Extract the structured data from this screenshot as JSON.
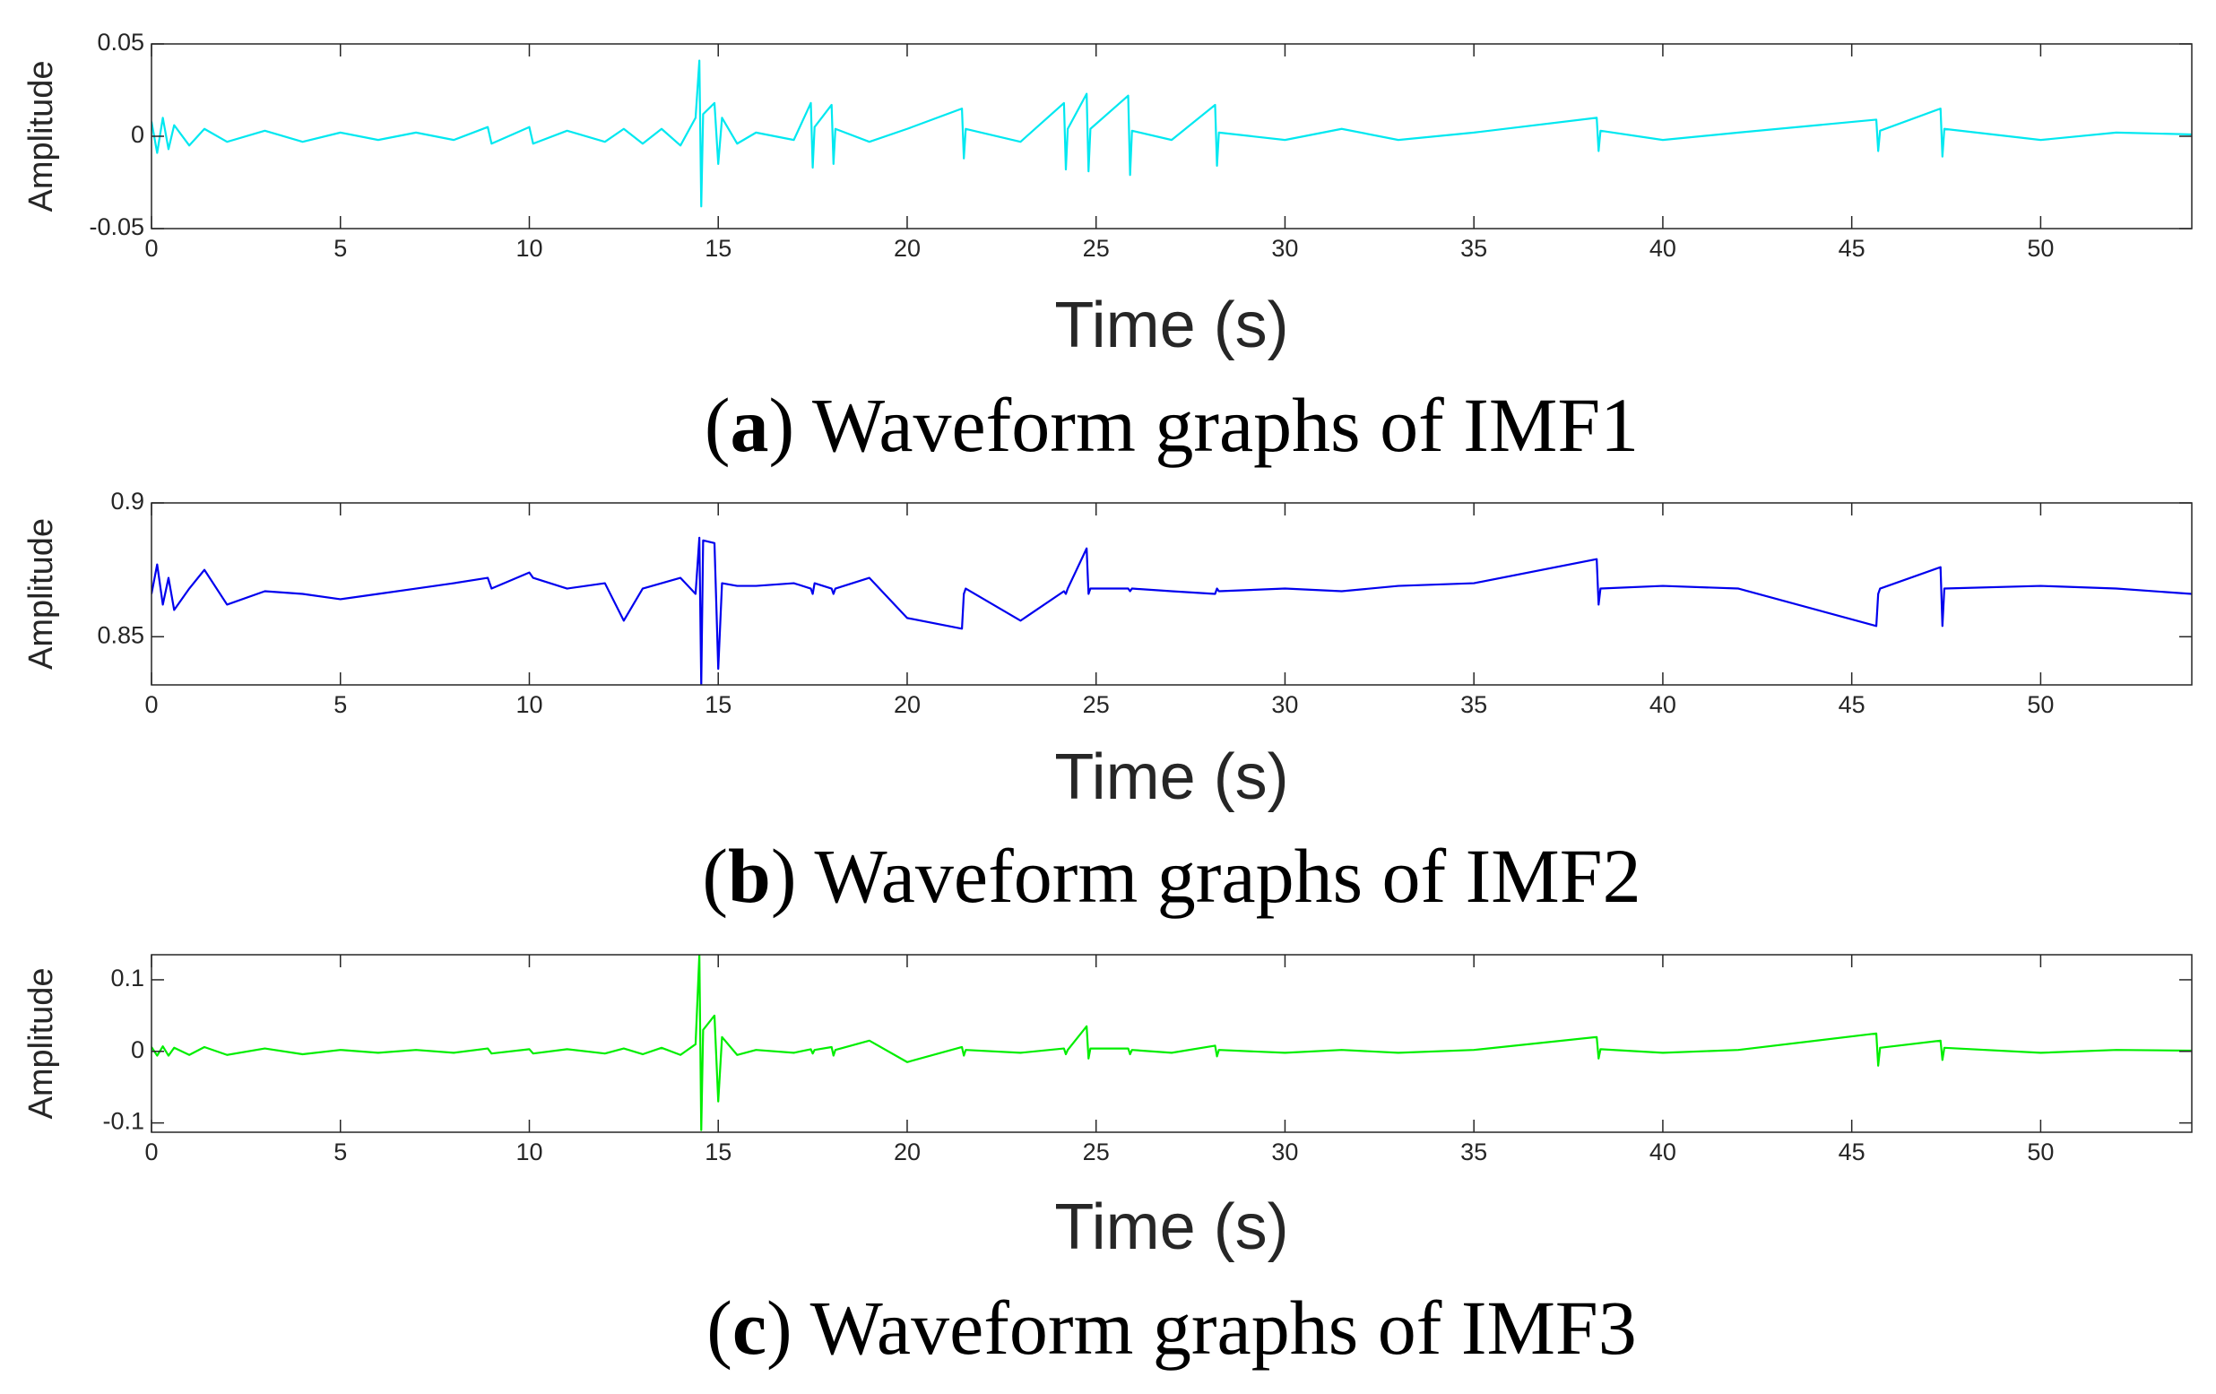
{
  "chart_data": [
    {
      "type": "line",
      "ylabel": "Amplitude",
      "xlabel": "Time (s)",
      "caption": [
        "(",
        "a",
        ") Waveform graphs of IMF1"
      ],
      "xlim": [
        0,
        54
      ],
      "xticks": [
        0,
        5,
        10,
        15,
        20,
        25,
        30,
        35,
        40,
        45,
        50
      ],
      "ylim": [
        -0.05,
        0.05
      ],
      "yticks": [
        -0.05,
        0,
        0.05
      ],
      "x": [
        0,
        0.15,
        0.3,
        0.45,
        0.6,
        1,
        1.4,
        2,
        3,
        4,
        5,
        6,
        7,
        8,
        8.9,
        9,
        10,
        10.1,
        11,
        12,
        12.5,
        13,
        13.5,
        14,
        14.4,
        14.5,
        14.55,
        14.6,
        14.9,
        15,
        15.1,
        15.5,
        16,
        17,
        17.45,
        17.5,
        17.55,
        18,
        18.05,
        18.1,
        19,
        20,
        21.45,
        21.5,
        21.55,
        23,
        24.15,
        24.2,
        24.25,
        24.75,
        24.8,
        24.85,
        25.85,
        25.9,
        25.95,
        27,
        28.15,
        28.2,
        28.25,
        30,
        31.5,
        33,
        35,
        38.25,
        38.3,
        38.35,
        40,
        42,
        45.65,
        45.7,
        45.75,
        47.35,
        47.4,
        47.45,
        50,
        52,
        54
      ],
      "series": [
        {
          "color": "#00e8f0",
          "values": [
            0.008,
            -0.009,
            0.01,
            -0.007,
            0.006,
            -0.005,
            0.004,
            -0.003,
            0.003,
            -0.003,
            0.002,
            -0.002,
            0.002,
            -0.002,
            0.005,
            -0.004,
            0.005,
            -0.004,
            0.003,
            -0.003,
            0.004,
            -0.004,
            0.004,
            -0.005,
            0.01,
            0.041,
            -0.038,
            0.012,
            0.018,
            -0.015,
            0.01,
            -0.004,
            0.002,
            -0.002,
            0.018,
            -0.017,
            0.005,
            0.017,
            -0.015,
            0.004,
            -0.003,
            0.004,
            0.015,
            -0.012,
            0.004,
            -0.003,
            0.018,
            -0.018,
            0.004,
            0.023,
            -0.019,
            0.004,
            0.022,
            -0.021,
            0.003,
            -0.002,
            0.017,
            -0.016,
            0.002,
            -0.002,
            0.004,
            -0.002,
            0.002,
            0.01,
            -0.008,
            0.003,
            -0.002,
            0.002,
            0.009,
            -0.008,
            0.003,
            0.015,
            -0.011,
            0.004,
            -0.002,
            0.002,
            0.001
          ]
        }
      ]
    },
    {
      "type": "line",
      "ylabel": "Amplitude",
      "xlabel": "Time (s)",
      "caption": [
        "(",
        "b",
        ") Waveform graphs of IMF2"
      ],
      "xlim": [
        0,
        54
      ],
      "xticks": [
        0,
        5,
        10,
        15,
        20,
        25,
        30,
        35,
        40,
        45,
        50
      ],
      "ylim": [
        0.832,
        0.9
      ],
      "yticks": [
        0.85,
        0.9
      ],
      "x": [
        0,
        0.15,
        0.3,
        0.45,
        0.6,
        1,
        1.4,
        2,
        3,
        4,
        5,
        6,
        7,
        8,
        8.9,
        9,
        10,
        10.1,
        11,
        12,
        12.5,
        13,
        13.5,
        14,
        14.4,
        14.5,
        14.55,
        14.6,
        14.9,
        15,
        15.1,
        15.5,
        16,
        17,
        17.45,
        17.5,
        17.55,
        18,
        18.05,
        18.1,
        19,
        20,
        21.45,
        21.5,
        21.55,
        23,
        24.15,
        24.2,
        24.25,
        24.75,
        24.8,
        24.85,
        25.85,
        25.9,
        25.95,
        27,
        28.15,
        28.2,
        28.25,
        30,
        31.5,
        33,
        35,
        38.25,
        38.3,
        38.35,
        40,
        42,
        45.65,
        45.7,
        45.75,
        47.35,
        47.4,
        47.45,
        50,
        52,
        54
      ],
      "series": [
        {
          "color": "#0000ee",
          "values": [
            0.866,
            0.877,
            0.862,
            0.872,
            0.86,
            0.868,
            0.875,
            0.862,
            0.867,
            0.866,
            0.864,
            0.866,
            0.868,
            0.87,
            0.872,
            0.868,
            0.874,
            0.872,
            0.868,
            0.87,
            0.856,
            0.868,
            0.87,
            0.872,
            0.866,
            0.887,
            0.832,
            0.886,
            0.885,
            0.838,
            0.87,
            0.869,
            0.869,
            0.87,
            0.868,
            0.866,
            0.87,
            0.868,
            0.866,
            0.868,
            0.872,
            0.857,
            0.853,
            0.866,
            0.868,
            0.856,
            0.867,
            0.866,
            0.868,
            0.883,
            0.866,
            0.868,
            0.868,
            0.867,
            0.868,
            0.867,
            0.866,
            0.868,
            0.867,
            0.868,
            0.867,
            0.869,
            0.87,
            0.879,
            0.862,
            0.868,
            0.869,
            0.868,
            0.854,
            0.866,
            0.868,
            0.876,
            0.854,
            0.868,
            0.869,
            0.868,
            0.866
          ]
        }
      ]
    },
    {
      "type": "line",
      "ylabel": "Amplitude",
      "xlabel": "Time (s)",
      "caption": [
        "(",
        "c",
        ") Waveform graphs of IMF3"
      ],
      "xlim": [
        0,
        54
      ],
      "xticks": [
        0,
        5,
        10,
        15,
        20,
        25,
        30,
        35,
        40,
        45,
        50
      ],
      "ylim": [
        -0.113,
        0.135
      ],
      "yticks": [
        -0.1,
        0,
        0.1
      ],
      "x": [
        0,
        0.15,
        0.3,
        0.45,
        0.6,
        1,
        1.4,
        2,
        3,
        4,
        5,
        6,
        7,
        8,
        8.9,
        9,
        10,
        10.1,
        11,
        12,
        12.5,
        13,
        13.5,
        14,
        14.4,
        14.5,
        14.55,
        14.6,
        14.9,
        15,
        15.1,
        15.5,
        16,
        17,
        17.45,
        17.5,
        17.55,
        18,
        18.05,
        18.1,
        19,
        20,
        21.45,
        21.5,
        21.55,
        23,
        24.15,
        24.2,
        24.25,
        24.75,
        24.8,
        24.85,
        25.85,
        25.9,
        25.95,
        27,
        28.15,
        28.2,
        28.25,
        30,
        31.5,
        33,
        35,
        38.25,
        38.3,
        38.35,
        40,
        42,
        45.65,
        45.7,
        45.75,
        47.35,
        47.4,
        47.45,
        50,
        52,
        54
      ],
      "series": [
        {
          "color": "#00ee00",
          "values": [
            0.006,
            -0.006,
            0.007,
            -0.006,
            0.005,
            -0.005,
            0.006,
            -0.005,
            0.004,
            -0.004,
            0.002,
            -0.002,
            0.002,
            -0.002,
            0.004,
            -0.003,
            0.003,
            -0.003,
            0.003,
            -0.003,
            0.004,
            -0.004,
            0.005,
            -0.005,
            0.01,
            0.135,
            -0.11,
            0.03,
            0.05,
            -0.07,
            0.02,
            -0.005,
            0.002,
            -0.002,
            0.003,
            -0.003,
            0.002,
            0.006,
            -0.006,
            0.002,
            0.015,
            -0.015,
            0.006,
            -0.006,
            0.002,
            -0.002,
            0.004,
            -0.004,
            0.002,
            0.035,
            -0.01,
            0.004,
            0.004,
            -0.004,
            0.002,
            -0.002,
            0.008,
            -0.007,
            0.002,
            -0.002,
            0.002,
            -0.002,
            0.002,
            0.02,
            -0.01,
            0.003,
            -0.002,
            0.002,
            0.025,
            -0.02,
            0.005,
            0.015,
            -0.012,
            0.005,
            -0.002,
            0.002,
            0.001
          ]
        }
      ]
    }
  ]
}
